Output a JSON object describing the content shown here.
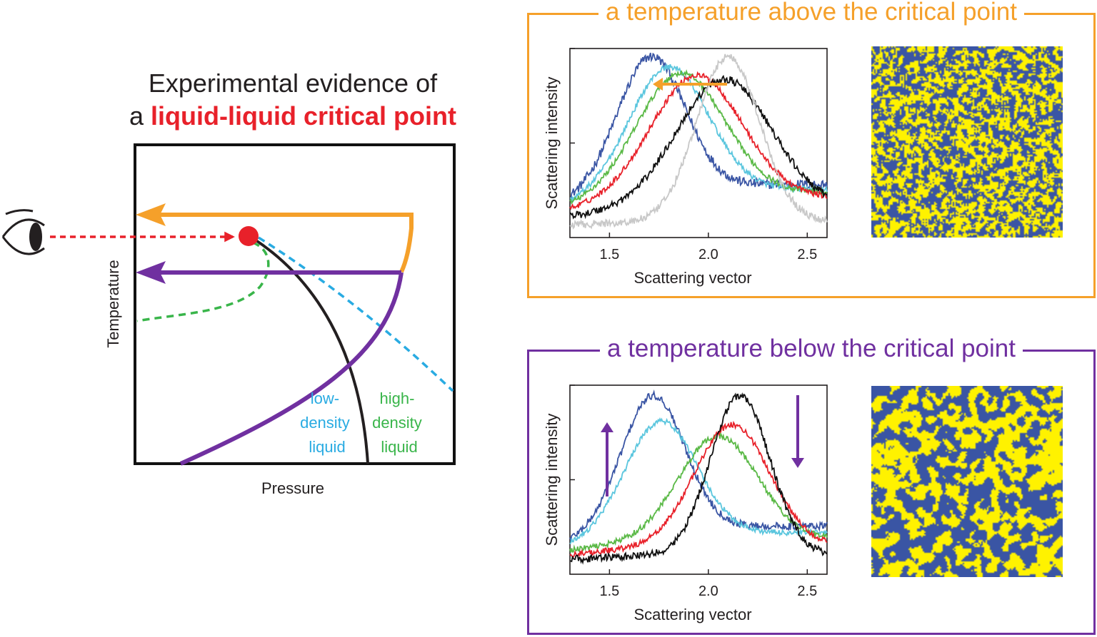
{
  "heading": {
    "line1": "Experimental evidence of",
    "line2_prefix": "a ",
    "line2_highlight": "liquid-liquid critical point"
  },
  "phase_diagram": {
    "x_axis_label": "Pressure",
    "y_axis_label": "Temperature",
    "low_density_label": [
      "low-",
      "density",
      "liquid"
    ],
    "high_density_label": [
      "high-",
      "density",
      "liquid"
    ],
    "colors": {
      "above_path": "#f5a02a",
      "below_path": "#7030a0",
      "critical_point": "#e8212a",
      "coexistence_line": "#231f20",
      "widom_line": "#29abe2",
      "spinodal_line": "#39b54a",
      "observer_arrow": "#e8212a"
    }
  },
  "panels": [
    {
      "id": "above",
      "title": "a temperature above the critical point",
      "color": "#f5a02a",
      "chart_data": {
        "type": "line",
        "xlabel": "Scattering vector",
        "ylabel": "Scattering intensity",
        "xlim": [
          1.3,
          2.6
        ],
        "ylim": [
          0,
          1
        ],
        "xticks": [
          "1.5",
          "2.0",
          "2.5"
        ],
        "series": [
          {
            "name": "blue",
            "color": "#3a55a4",
            "peak": 1.71,
            "height": 0.74,
            "width": 0.17,
            "base": 0.27,
            "tail": 0.05
          },
          {
            "name": "cyan",
            "color": "#5bc6de",
            "peak": 1.8,
            "height": 0.7,
            "width": 0.2,
            "base": 0.24,
            "tail": 0.03
          },
          {
            "name": "green",
            "color": "#5ab946",
            "peak": 1.86,
            "height": 0.68,
            "width": 0.22,
            "base": 0.22,
            "tail": 0.03
          },
          {
            "name": "red",
            "color": "#e8212a",
            "peak": 1.94,
            "height": 0.69,
            "width": 0.23,
            "base": 0.19,
            "tail": 0.03
          },
          {
            "name": "black",
            "color": "#111111",
            "peak": 2.08,
            "height": 0.72,
            "width": 0.24,
            "base": 0.13,
            "tail": 0.04
          },
          {
            "name": "grey",
            "color": "#c8c8c8",
            "peak": 2.1,
            "height": 0.92,
            "width": 0.16,
            "base": 0.05,
            "tail": 0.04
          }
        ]
      }
    },
    {
      "id": "below",
      "title": "a temperature below the critical point",
      "color": "#7030a0",
      "chart_data": {
        "type": "line",
        "xlabel": "Scattering vector",
        "ylabel": "Scattering intensity",
        "xlim": [
          1.3,
          2.6
        ],
        "ylim": [
          0,
          1
        ],
        "xticks": [
          "1.5",
          "2.0",
          "2.5"
        ],
        "series": [
          {
            "name": "blue",
            "color": "#3a55a4",
            "peak": 1.72,
            "height": 0.75,
            "width": 0.16,
            "base": 0.24,
            "tail": 0.04
          },
          {
            "name": "cyan",
            "color": "#5bc6de",
            "peak": 1.76,
            "height": 0.64,
            "width": 0.18,
            "base": 0.2,
            "tail": 0.03
          },
          {
            "name": "green",
            "color": "#5ab946",
            "peak": 2.05,
            "height": 0.58,
            "width": 0.2,
            "base": 0.16,
            "tail": 0.03
          },
          {
            "name": "red",
            "color": "#e8212a",
            "peak": 2.12,
            "height": 0.68,
            "width": 0.19,
            "base": 0.12,
            "tail": 0.03
          },
          {
            "name": "black",
            "color": "#111111",
            "peak": 2.16,
            "height": 0.89,
            "width": 0.15,
            "base": 0.07,
            "tail": 0.04
          }
        ]
      }
    }
  ],
  "map_colors": {
    "a": "#3a55a4",
    "b": "#fff200"
  }
}
